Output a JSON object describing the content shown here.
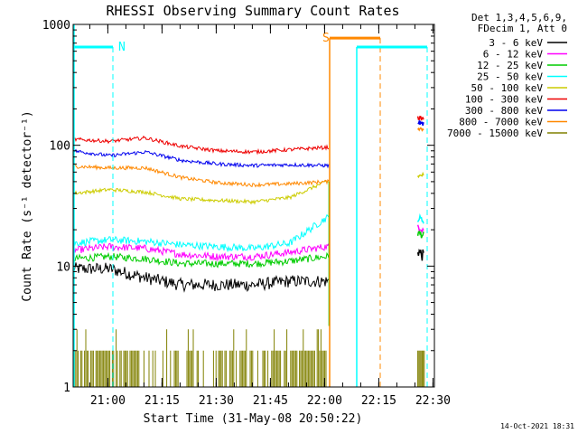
{
  "chart_data": {
    "type": "line",
    "title": "RHESSI Observing Summary Count Rates",
    "xlabel": "Start Time (31-May-08 20:50:22)",
    "ylabel": "Count Rate (s⁻¹ detector⁻¹)",
    "x_unit": "minutes since 20:50:22",
    "xlim": [
      0,
      100
    ],
    "ylim": [
      1,
      1000
    ],
    "y_scale": "log",
    "x_ticks": [
      {
        "label": "21:00",
        "value": 9.6
      },
      {
        "label": "21:15",
        "value": 24.6
      },
      {
        "label": "21:30",
        "value": 39.6
      },
      {
        "label": "21:45",
        "value": 54.6
      },
      {
        "label": "22:00",
        "value": 69.6
      },
      {
        "label": "22:15",
        "value": 84.6
      },
      {
        "label": "22:30",
        "value": 99.6
      }
    ],
    "y_ticks": [
      {
        "label": "1",
        "value": 1
      },
      {
        "label": "10",
        "value": 10
      },
      {
        "label": "100",
        "value": 100
      },
      {
        "label": "1000",
        "value": 1000
      }
    ],
    "legend_header": [
      "Det 1,3,4,5,6,9,",
      "FDecim 1, Att 0"
    ],
    "legend_position": "right",
    "series": [
      {
        "name": "3 - 6 keV",
        "color": "#000000",
        "values": [
          [
            0,
            9.5
          ],
          [
            10,
            9.5
          ],
          [
            20,
            8
          ],
          [
            30,
            7
          ],
          [
            40,
            7
          ],
          [
            50,
            7
          ],
          [
            60,
            7.5
          ],
          [
            70,
            7.5
          ]
        ],
        "after": [
          [
            95,
            14
          ],
          [
            97,
            12
          ]
        ]
      },
      {
        "name": "6 - 12 keV",
        "color": "#ff00ff",
        "values": [
          [
            0,
            13.5
          ],
          [
            10,
            14.5
          ],
          [
            20,
            14
          ],
          [
            30,
            12.5
          ],
          [
            40,
            12
          ],
          [
            50,
            12
          ],
          [
            60,
            13
          ],
          [
            70,
            14.5
          ]
        ],
        "after": [
          [
            95,
            22
          ],
          [
            97,
            20
          ]
        ]
      },
      {
        "name": "12 - 25 keV",
        "color": "#00cc00",
        "values": [
          [
            0,
            11.5
          ],
          [
            10,
            12
          ],
          [
            20,
            11.5
          ],
          [
            30,
            10.5
          ],
          [
            40,
            10.5
          ],
          [
            50,
            10.5
          ],
          [
            60,
            11
          ],
          [
            70,
            12
          ]
        ],
        "after": [
          [
            95,
            19
          ],
          [
            97,
            18
          ]
        ]
      },
      {
        "name": "25 - 50 keV",
        "color": "#00ffff",
        "values": [
          [
            0,
            15.5
          ],
          [
            10,
            16.5
          ],
          [
            20,
            16
          ],
          [
            30,
            15
          ],
          [
            40,
            14.5
          ],
          [
            50,
            14
          ],
          [
            60,
            15.5
          ],
          [
            70,
            25
          ]
        ],
        "after": [
          [
            95,
            25
          ],
          [
            97,
            24
          ]
        ]
      },
      {
        "name": "50 - 100 keV",
        "color": "#cccc00",
        "values": [
          [
            0,
            40
          ],
          [
            10,
            43
          ],
          [
            20,
            41
          ],
          [
            30,
            36
          ],
          [
            40,
            35
          ],
          [
            50,
            34
          ],
          [
            60,
            37
          ],
          [
            70,
            50
          ]
        ],
        "after": [
          [
            95,
            55
          ],
          [
            97,
            57
          ]
        ]
      },
      {
        "name": "100 - 300 keV",
        "color": "#ee0000",
        "values": [
          [
            0,
            112
          ],
          [
            10,
            108
          ],
          [
            20,
            115
          ],
          [
            30,
            98
          ],
          [
            40,
            90
          ],
          [
            50,
            88
          ],
          [
            60,
            92
          ],
          [
            70,
            96
          ]
        ],
        "after": [
          [
            95,
            170
          ],
          [
            97,
            165
          ]
        ]
      },
      {
        "name": "300 - 800 keV",
        "color": "#0000ee",
        "values": [
          [
            0,
            90
          ],
          [
            10,
            82
          ],
          [
            20,
            88
          ],
          [
            30,
            75
          ],
          [
            40,
            70
          ],
          [
            50,
            68
          ],
          [
            60,
            69
          ],
          [
            70,
            68
          ]
        ],
        "after": [
          [
            95,
            155
          ],
          [
            97,
            150
          ]
        ]
      },
      {
        "name": "800 - 7000 keV",
        "color": "#ff8800",
        "values": [
          [
            0,
            67
          ],
          [
            10,
            65
          ],
          [
            20,
            65
          ],
          [
            30,
            54
          ],
          [
            40,
            49
          ],
          [
            50,
            47
          ],
          [
            60,
            48
          ],
          [
            70,
            50
          ]
        ],
        "after": [
          [
            95,
            140
          ],
          [
            97,
            135
          ]
        ]
      },
      {
        "name": "7000 - 15000 keV",
        "color": "#808000",
        "values": [],
        "after": []
      }
    ],
    "flags": [
      {
        "label": "N",
        "color": "#00ffff",
        "segments": [
          [
            0,
            11
          ]
        ],
        "level": 650,
        "dashed_at": [
          11,
          98
        ]
      },
      {
        "label": "S",
        "color": "#ff8800",
        "segments": [
          [
            71,
            85
          ]
        ],
        "level": 770,
        "solid_at": [
          71
        ],
        "dashed_at": [
          85
        ]
      },
      {
        "label": "",
        "color": "#00ffff",
        "segments": [
          [
            78.5,
            98
          ]
        ],
        "level": 650,
        "solid_at": [
          78.5
        ]
      }
    ],
    "gap": [
      70.8,
      95.4
    ],
    "footer": "14-Oct-2021 18:31"
  }
}
